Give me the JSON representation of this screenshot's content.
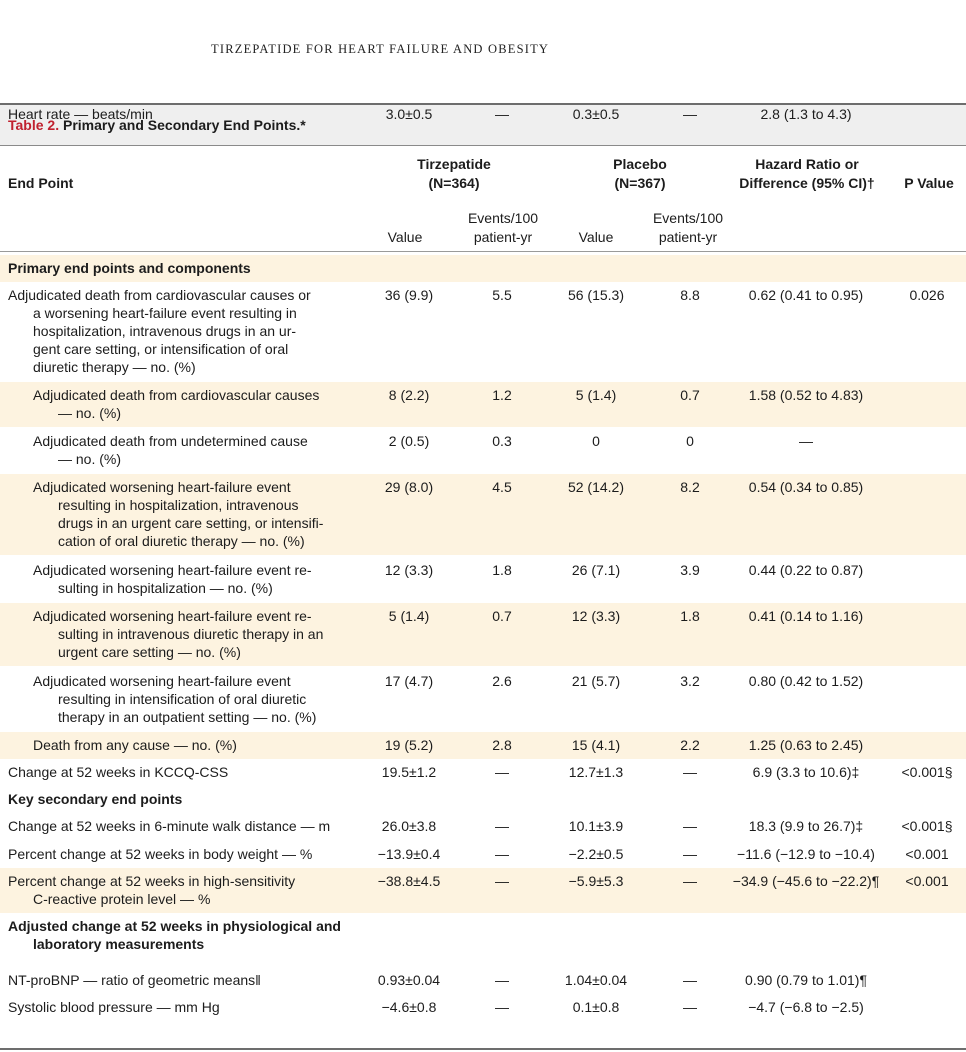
{
  "running_head": "TIRZEPATIDE FOR HEART FAILURE AND OBESITY",
  "table": {
    "caption_label": "Table 2.",
    "caption_title": " Primary and Secondary End Points.*",
    "headers": {
      "end_point": "End Point",
      "tirz": "Tirzepatide",
      "tirz_n": "(N=364)",
      "placebo": "Placebo",
      "placebo_n": "(N=367)",
      "hr_1": "Hazard Ratio or",
      "hr_2": "Difference (95% CI)†",
      "p": "P Value",
      "value_a": "Value",
      "events_a_1": "Events/100",
      "events_a_2": "patient-yr",
      "value_b": "Value",
      "events_b_1": "Events/100",
      "events_b_2": "patient-yr"
    },
    "band_color": "#fdf3e0",
    "rows": [
      {
        "kind": "section",
        "lines": [
          "Primary end points and components"
        ]
      },
      {
        "kind": "data",
        "indent": 0,
        "lines": [
          "Adjudicated death from cardiovascular causes or",
          "a worsening heart-failure event resulting in",
          "hospitalization, intravenous drugs in an ur-",
          "gent care setting, or intensification of oral",
          "diuretic therapy — no. (%)"
        ],
        "tv": "36 (9.9)",
        "te": "5.5",
        "pv": "56 (15.3)",
        "pe": "8.8",
        "hr": "0.62 (0.41 to 0.95)",
        "p": "0.026"
      },
      {
        "kind": "data",
        "indent": 1,
        "lines": [
          "Adjudicated death from cardiovascular causes",
          "— no. (%)"
        ],
        "tv": "8 (2.2)",
        "te": "1.2",
        "pv": "5 (1.4)",
        "pe": "0.7",
        "hr": "1.58 (0.52 to 4.83)",
        "p": ""
      },
      {
        "kind": "data",
        "indent": 1,
        "lines": [
          "Adjudicated death from undetermined cause",
          "— no. (%)"
        ],
        "tv": "2 (0.5)",
        "te": "0.3",
        "pv": "0",
        "pe": "0",
        "hr": "—",
        "p": ""
      },
      {
        "kind": "data",
        "indent": 1,
        "lines": [
          "Adjudicated worsening heart-failure event",
          "resulting in hospitalization, intravenous",
          "drugs in an urgent care setting, or intensifi-",
          "cation of oral diuretic therapy — no. (%)"
        ],
        "tv": "29 (8.0)",
        "te": "4.5",
        "pv": "52 (14.2)",
        "pe": "8.2",
        "hr": "0.54 (0.34 to 0.85)",
        "p": ""
      },
      {
        "kind": "data",
        "indent": 1,
        "lines": [
          "Adjudicated worsening heart-failure event re-",
          "sulting in hospitalization — no. (%)"
        ],
        "tv": "12 (3.3)",
        "te": "1.8",
        "pv": "26 (7.1)",
        "pe": "3.9",
        "hr": "0.44 (0.22 to 0.87)",
        "p": ""
      },
      {
        "kind": "data",
        "indent": 1,
        "lines": [
          "Adjudicated worsening heart-failure event re-",
          "sulting in intravenous diuretic therapy in an",
          "urgent care setting — no. (%)"
        ],
        "tv": "5 (1.4)",
        "te": "0.7",
        "pv": "12 (3.3)",
        "pe": "1.8",
        "hr": "0.41 (0.14 to 1.16)",
        "p": ""
      },
      {
        "kind": "data",
        "indent": 1,
        "lines": [
          "Adjudicated worsening heart-failure event",
          "resulting in intensification of oral diuretic",
          "therapy in an outpatient setting — no. (%)"
        ],
        "tv": "17 (4.7)",
        "te": "2.6",
        "pv": "21 (5.7)",
        "pe": "3.2",
        "hr": "0.80 (0.42 to 1.52)",
        "p": ""
      },
      {
        "kind": "data",
        "indent": 1,
        "lines": [
          "Death from any cause — no. (%)"
        ],
        "tv": "19 (5.2)",
        "te": "2.8",
        "pv": "15 (4.1)",
        "pe": "2.2",
        "hr": "1.25 (0.63 to 2.45)",
        "p": ""
      },
      {
        "kind": "data",
        "indent": 0,
        "lines": [
          "Change at 52 weeks in KCCQ-CSS"
        ],
        "tv": "19.5±1.2",
        "te": "—",
        "pv": "12.7±1.3",
        "pe": "—",
        "hr": "6.9 (3.3 to 10.6)‡",
        "p": "<0.001§"
      },
      {
        "kind": "section",
        "lines": [
          "Key secondary end points"
        ]
      },
      {
        "kind": "data",
        "indent": 0,
        "lines": [
          "Change at 52 weeks in 6-minute walk distance — m"
        ],
        "tv": "26.0±3.8",
        "te": "—",
        "pv": "10.1±3.9",
        "pe": "—",
        "hr": "18.3 (9.9 to 26.7)‡",
        "p": "<0.001§"
      },
      {
        "kind": "data",
        "indent": 0,
        "lines": [
          "Percent change at 52 weeks in body weight — %"
        ],
        "tv": "−13.9±0.4",
        "te": "—",
        "pv": "−2.2±0.5",
        "pe": "—",
        "hr": "−11.6 (−12.9 to −10.4)",
        "p": "<0.001"
      },
      {
        "kind": "data",
        "indent": 0,
        "lines": [
          "Percent change at 52 weeks in high-sensitivity",
          "C-reactive protein level — %"
        ],
        "tv": "−38.8±4.5",
        "te": "—",
        "pv": "−5.9±5.3",
        "pe": "—",
        "hr": "−34.9 (−45.6 to −22.2)¶",
        "p": "<0.001"
      },
      {
        "kind": "section",
        "lines": [
          "Adjusted change at 52 weeks in physiological and",
          "laboratory measurements"
        ]
      },
      {
        "kind": "data",
        "indent": 0,
        "lines": [
          "NT-proBNP — ratio of geometric means‖"
        ],
        "tv": "0.93±0.04",
        "te": "—",
        "pv": "1.04±0.04",
        "pe": "—",
        "hr": "0.90 (0.79 to 1.01)¶",
        "p": ""
      },
      {
        "kind": "data",
        "indent": 0,
        "lines": [
          "Systolic blood pressure — mm Hg"
        ],
        "tv": "−4.6±0.8",
        "te": "—",
        "pv": "0.1±0.8",
        "pe": "—",
        "hr": "−4.7 (−6.8 to −2.5)",
        "p": ""
      },
      {
        "kind": "data",
        "indent": 0,
        "lines": [
          "Heart rate — beats/min"
        ],
        "tv": "3.0±0.5",
        "te": "—",
        "pv": "0.3±0.5",
        "pe": "—",
        "hr": "2.8 (1.3 to 4.3)",
        "p": ""
      }
    ]
  }
}
